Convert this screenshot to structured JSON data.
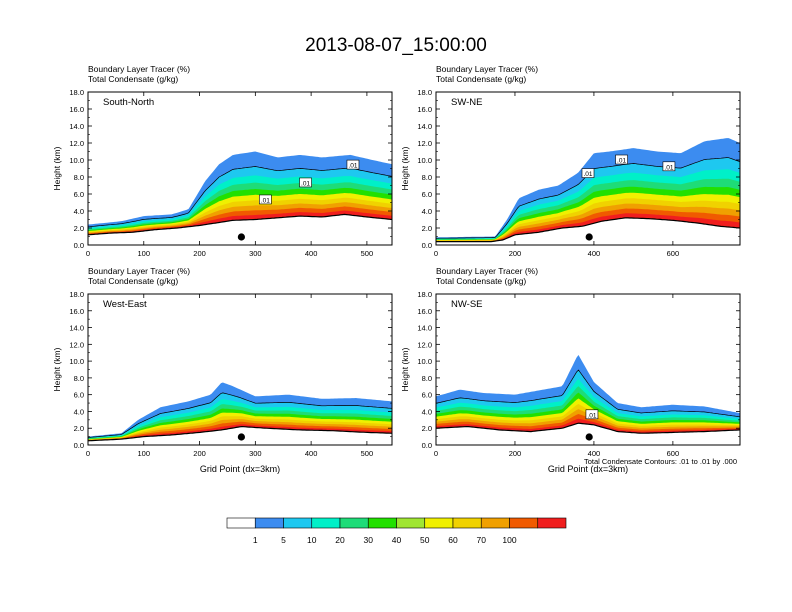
{
  "figure": {
    "title": "2013-08-07_15:00:00",
    "footnote": "Total Condensate Contours: .01 to .01 by .000"
  },
  "chart_data": [
    {
      "type": "heatmap",
      "name": "South-North",
      "panel_label": "South-North",
      "subtitle_1": "Boundary Layer Tracer    (%)",
      "subtitle_2": "Total Condensate    (g/kg)",
      "ylabel": "Height (km)",
      "xlabel": "",
      "xlim": [
        0,
        545
      ],
      "ylim": [
        0,
        18
      ],
      "xticks": [
        0,
        100,
        200,
        300,
        400,
        500
      ],
      "yticks": [
        0,
        2,
        4,
        6,
        8,
        10,
        12,
        14,
        16,
        18
      ],
      "grid": false,
      "marker_x": 275,
      "terrain": [
        [
          0,
          1.2
        ],
        [
          40,
          1.4
        ],
        [
          80,
          1.5
        ],
        [
          120,
          1.8
        ],
        [
          160,
          2.0
        ],
        [
          200,
          2.3
        ],
        [
          230,
          2.6
        ],
        [
          260,
          2.9
        ],
        [
          300,
          3.0
        ],
        [
          340,
          3.2
        ],
        [
          380,
          3.4
        ],
        [
          420,
          3.3
        ],
        [
          460,
          3.6
        ],
        [
          500,
          3.3
        ],
        [
          545,
          3.0
        ]
      ],
      "tracer_top": [
        [
          0,
          2.4
        ],
        [
          60,
          2.8
        ],
        [
          100,
          3.4
        ],
        [
          150,
          3.6
        ],
        [
          180,
          4.2
        ],
        [
          210,
          7.5
        ],
        [
          235,
          9.5
        ],
        [
          260,
          10.6
        ],
        [
          300,
          11.0
        ],
        [
          340,
          10.3
        ],
        [
          380,
          10.6
        ],
        [
          420,
          10.3
        ],
        [
          470,
          10.6
        ],
        [
          510,
          10.0
        ],
        [
          545,
          9.5
        ]
      ],
      "contour_labels": [
        {
          "x": 475,
          "y": 9.4,
          "text": ".01"
        },
        {
          "x": 390,
          "y": 7.3,
          "text": ".01"
        },
        {
          "x": 318,
          "y": 5.3,
          "text": ".01"
        }
      ]
    },
    {
      "type": "heatmap",
      "name": "SW-NE",
      "panel_label": "SW-NE",
      "subtitle_1": "Boundary Layer Tracer    (%)",
      "subtitle_2": "Total Condensate    (g/kg)",
      "ylabel": "Height (km)",
      "xlabel": "",
      "xlim": [
        0,
        770
      ],
      "ylim": [
        0,
        18
      ],
      "xticks": [
        0,
        200,
        400,
        600
      ],
      "yticks": [
        0,
        2,
        4,
        6,
        8,
        10,
        12,
        14,
        16,
        18
      ],
      "grid": false,
      "marker_x": 388,
      "terrain": [
        [
          0,
          0.4
        ],
        [
          140,
          0.4
        ],
        [
          170,
          0.6
        ],
        [
          200,
          1.2
        ],
        [
          260,
          1.5
        ],
        [
          320,
          2.0
        ],
        [
          370,
          2.2
        ],
        [
          420,
          2.8
        ],
        [
          480,
          3.2
        ],
        [
          540,
          3.1
        ],
        [
          600,
          2.9
        ],
        [
          660,
          2.6
        ],
        [
          720,
          2.2
        ],
        [
          770,
          2.0
        ]
      ],
      "tracer_top": [
        [
          0,
          0.9
        ],
        [
          150,
          1.0
        ],
        [
          180,
          3.0
        ],
        [
          210,
          5.5
        ],
        [
          260,
          6.5
        ],
        [
          310,
          7.0
        ],
        [
          360,
          8.5
        ],
        [
          400,
          10.8
        ],
        [
          440,
          11.0
        ],
        [
          500,
          11.4
        ],
        [
          560,
          11.0
        ],
        [
          620,
          10.8
        ],
        [
          680,
          12.2
        ],
        [
          740,
          12.6
        ],
        [
          770,
          12.0
        ]
      ],
      "contour_labels": [
        {
          "x": 385,
          "y": 8.4,
          "text": ".01"
        },
        {
          "x": 470,
          "y": 10.0,
          "text": ".01"
        },
        {
          "x": 590,
          "y": 9.2,
          "text": ".01"
        }
      ]
    },
    {
      "type": "heatmap",
      "name": "West-East",
      "panel_label": "West-East",
      "subtitle_1": "Boundary Layer Tracer    (%)",
      "subtitle_2": "Total Condensate    (g/kg)",
      "ylabel": "Height (km)",
      "xlabel": "Grid Point (dx=3km)",
      "xlim": [
        0,
        545
      ],
      "ylim": [
        0,
        18
      ],
      "xticks": [
        0,
        100,
        200,
        300,
        400,
        500
      ],
      "yticks": [
        0,
        2,
        4,
        6,
        8,
        10,
        12,
        14,
        16,
        18
      ],
      "grid": false,
      "marker_x": 275,
      "terrain": [
        [
          0,
          0.5
        ],
        [
          60,
          0.7
        ],
        [
          100,
          1.0
        ],
        [
          150,
          1.2
        ],
        [
          200,
          1.5
        ],
        [
          240,
          1.8
        ],
        [
          275,
          2.2
        ],
        [
          320,
          2.0
        ],
        [
          380,
          1.8
        ],
        [
          440,
          1.7
        ],
        [
          500,
          1.5
        ],
        [
          545,
          1.4
        ]
      ],
      "tracer_top": [
        [
          0,
          1.0
        ],
        [
          60,
          1.4
        ],
        [
          90,
          3.0
        ],
        [
          130,
          4.5
        ],
        [
          180,
          5.2
        ],
        [
          220,
          6.0
        ],
        [
          240,
          7.5
        ],
        [
          260,
          7.0
        ],
        [
          300,
          5.8
        ],
        [
          360,
          6.0
        ],
        [
          420,
          5.5
        ],
        [
          480,
          5.6
        ],
        [
          545,
          5.2
        ]
      ],
      "contour_labels": []
    },
    {
      "type": "heatmap",
      "name": "NW-SE",
      "panel_label": "NW-SE",
      "subtitle_1": "Boundary Layer Tracer    (%)",
      "subtitle_2": "Total Condensate    (g/kg)",
      "ylabel": "Height (km)",
      "xlabel": "Grid Point (dx=3km)",
      "xlim": [
        0,
        770
      ],
      "ylim": [
        0,
        18
      ],
      "xticks": [
        0,
        200,
        400,
        600
      ],
      "yticks": [
        0,
        2,
        4,
        6,
        8,
        10,
        12,
        14,
        16,
        18
      ],
      "grid": false,
      "marker_x": 388,
      "terrain": [
        [
          0,
          2.0
        ],
        [
          80,
          2.2
        ],
        [
          160,
          1.8
        ],
        [
          240,
          1.6
        ],
        [
          320,
          2.0
        ],
        [
          360,
          2.6
        ],
        [
          400,
          2.4
        ],
        [
          460,
          1.6
        ],
        [
          520,
          1.4
        ],
        [
          600,
          1.5
        ],
        [
          680,
          1.6
        ],
        [
          770,
          1.8
        ]
      ],
      "tracer_top": [
        [
          0,
          5.8
        ],
        [
          60,
          6.6
        ],
        [
          120,
          6.2
        ],
        [
          200,
          6.0
        ],
        [
          260,
          6.5
        ],
        [
          320,
          7.0
        ],
        [
          360,
          10.8
        ],
        [
          400,
          7.5
        ],
        [
          460,
          5.0
        ],
        [
          520,
          4.5
        ],
        [
          600,
          4.8
        ],
        [
          680,
          4.6
        ],
        [
          770,
          3.8
        ]
      ],
      "contour_labels": [
        {
          "x": 395,
          "y": 3.6,
          "text": ".01"
        }
      ]
    }
  ],
  "colorbar": {
    "labels": [
      "1",
      "5",
      "10",
      "20",
      "30",
      "40",
      "50",
      "60",
      "70",
      "100"
    ],
    "colors": [
      "#ffffff",
      "#3c8cf0",
      "#1ec8f0",
      "#00f0c8",
      "#1edc78",
      "#22e000",
      "#a0e632",
      "#f0f000",
      "#f0d200",
      "#f0a000",
      "#f05a00",
      "#f01e1e"
    ]
  }
}
